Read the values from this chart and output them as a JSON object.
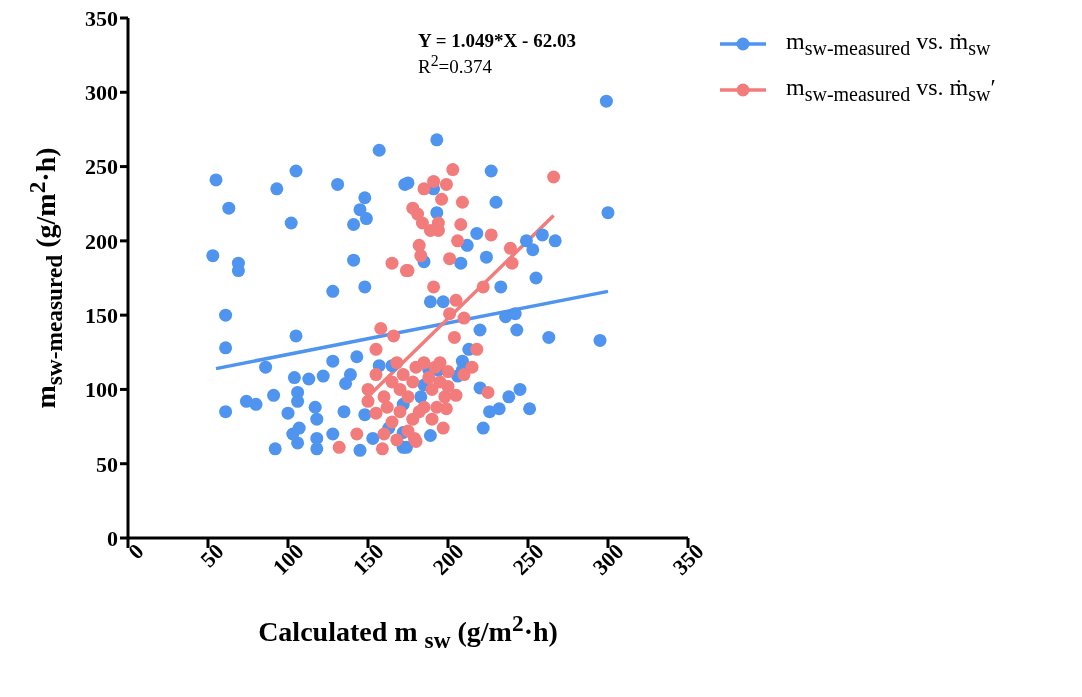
{
  "chart_data": {
    "type": "scatter",
    "xlabel": "Calculated m $_{sw}$ (g/m$^{2}$·h)",
    "ylabel": "m$_{sw-measured}$ (g/m$^{2}$·h)",
    "annotations": [
      "Y = 1.049*X - 62.03",
      "R$^{2}$=0.374"
    ],
    "xlim": [
      0,
      350
    ],
    "xticks": [
      0,
      50,
      100,
      150,
      200,
      250,
      300,
      350
    ],
    "ylim": [
      0,
      350
    ],
    "yticks": [
      0,
      50,
      100,
      150,
      200,
      250,
      300,
      350
    ],
    "marker": "circle",
    "legend": "top right",
    "series": [
      {
        "name": "m$_{sw-measured}$ vs. ṁ$_{sw}$",
        "color": "#4f94ef",
        "x": [
          55,
          63,
          105,
          93,
          102,
          131,
          157,
          173,
          148,
          145,
          149,
          141,
          53,
          69,
          69,
          141,
          128,
          148,
          61,
          299,
          193,
          227,
          175,
          191,
          230,
          193,
          300,
          218,
          212,
          224,
          249,
          259,
          267,
          253,
          185,
          208,
          255,
          233,
          189,
          197,
          236,
          242,
          61,
          105,
          86,
          128,
          104,
          113,
          122,
          143,
          139,
          136,
          157,
          165,
          74,
          80,
          61,
          91,
          106,
          106,
          100,
          117,
          118,
          135,
          148,
          103,
          107,
          106,
          92,
          118,
          118,
          128,
          145,
          153,
          163,
          172,
          172,
          220,
          243,
          263,
          295,
          213,
          209,
          209,
          206,
          188,
          194,
          185,
          183,
          220,
          238,
          245,
          226,
          232,
          251,
          222,
          189,
          174,
          172
        ],
        "values": [
          241,
          222,
          247,
          235,
          212,
          238,
          261,
          238,
          229,
          221,
          215,
          211,
          190,
          185,
          180,
          187,
          166,
          169,
          150,
          294,
          268,
          247,
          239,
          235,
          226,
          219,
          219,
          205,
          197,
          189,
          200,
          204,
          200,
          194,
          186,
          185,
          175,
          169,
          159,
          159,
          149,
          151,
          128,
          136,
          115,
          119,
          108,
          107,
          109,
          122,
          110,
          104,
          116,
          116,
          92,
          90,
          85,
          96,
          98,
          92,
          84,
          88,
          80,
          85,
          83,
          70,
          74,
          64,
          60,
          67,
          60,
          70,
          59,
          67,
          74,
          90,
          61,
          140,
          140,
          135,
          133,
          127,
          119,
          113,
          109,
          113,
          113,
          103,
          95,
          101,
          95,
          100,
          85,
          87,
          87,
          74,
          69,
          61,
          71
        ]
      },
      {
        "name": "m$_{sw-measured}$ vs. ṁ$_{sw}$′",
        "color": "#f27c7c",
        "x": [
          165,
          174,
          203,
          266,
          191,
          199,
          185,
          196,
          209,
          178,
          181,
          184,
          194,
          189,
          194,
          208,
          227,
          206,
          182,
          183,
          239,
          240,
          201,
          175,
          222,
          191,
          205,
          201,
          210,
          155,
          158,
          166,
          204,
          218,
          225,
          205,
          193,
          199,
          182,
          197,
          179,
          132,
          143,
          159,
          150,
          155,
          160,
          162,
          165,
          168,
          170,
          172,
          175,
          178,
          180,
          185,
          188,
          190,
          192,
          195,
          198,
          200,
          170,
          165,
          160,
          168,
          178,
          185,
          155,
          150,
          180,
          175,
          190,
          195,
          210,
          215,
          200
        ],
        "values": [
          185,
          180,
          248,
          243,
          240,
          238,
          235,
          228,
          226,
          222,
          218,
          212,
          212,
          207,
          207,
          211,
          204,
          200,
          197,
          190,
          195,
          185,
          188,
          180,
          169,
          169,
          160,
          151,
          148,
          127,
          141,
          136,
          135,
          127,
          98,
          96,
          88,
          87,
          85,
          74,
          67,
          61,
          70,
          60,
          100,
          110,
          95,
          88,
          105,
          118,
          100,
          110,
          95,
          105,
          115,
          118,
          108,
          100,
          115,
          105,
          95,
          112,
          85,
          78,
          70,
          66,
          80,
          88,
          84,
          92,
          65,
          72,
          80,
          118,
          110,
          115,
          102
        ]
      },
      {
        "type": "line",
        "marker": "none",
        "color": "#4f94ef",
        "x": [
          55,
          300
        ],
        "values": [
          114,
          166
        ]
      },
      {
        "type": "line",
        "marker": "none",
        "color": "#f27c7c",
        "x": [
          147,
          266
        ],
        "values": [
          92,
          217
        ]
      }
    ]
  }
}
